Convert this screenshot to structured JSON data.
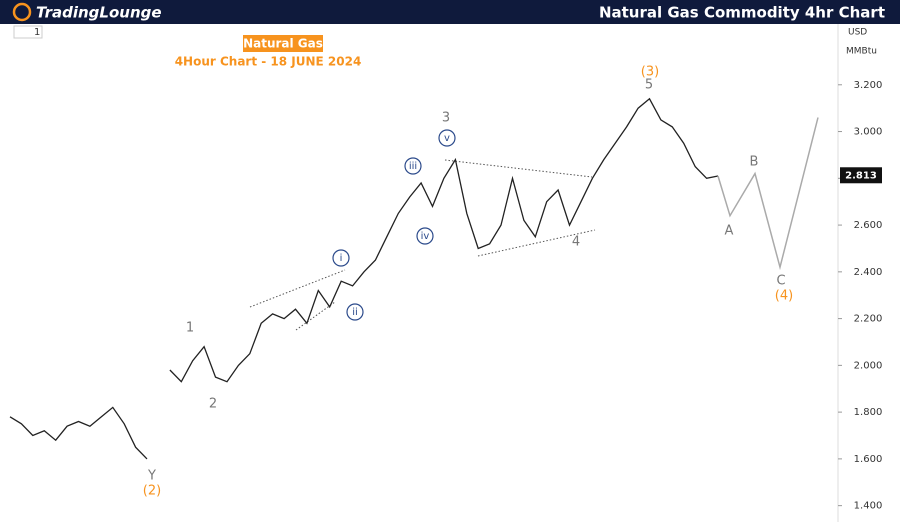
{
  "header": {
    "logo": "TradingLounge",
    "title": "Natural Gas Commodity 4hr Chart"
  },
  "toolbar": {
    "interval": "1"
  },
  "chart_data": {
    "type": "line",
    "title": "Natural Gas",
    "subtitle": "4Hour Chart - 18 JUNE 2024",
    "currency": "USD",
    "unit": "MMBtu",
    "ylim": [
      1.36,
      3.46
    ],
    "yticks": [
      {
        "value": 1.4,
        "label": "1.400"
      },
      {
        "value": 1.6,
        "label": "1.600"
      },
      {
        "value": 1.8,
        "label": "1.800"
      },
      {
        "value": 2.0,
        "label": "2.000"
      },
      {
        "value": 2.2,
        "label": "2.200"
      },
      {
        "value": 2.4,
        "label": "2.400"
      },
      {
        "value": 2.6,
        "label": "2.600"
      },
      {
        "value": 2.8,
        "label": "2.800"
      },
      {
        "value": 3.0,
        "label": "3.000"
      },
      {
        "value": 3.2,
        "label": "3.200"
      }
    ],
    "last_price": {
      "value": 2.813,
      "label": "2.813"
    },
    "series": [
      {
        "color": "#222222",
        "values": [
          1.78,
          1.75,
          1.7,
          1.72,
          1.68,
          1.74,
          1.76,
          1.74,
          1.78,
          1.82,
          1.75,
          1.65,
          1.6,
          null,
          1.98,
          1.93,
          2.02,
          2.08,
          1.95,
          1.93,
          2.0,
          2.05,
          2.18,
          2.22,
          2.2,
          2.24,
          2.18,
          2.32,
          2.25,
          2.36,
          2.34,
          2.4,
          2.45,
          2.55,
          2.65,
          2.72,
          2.78,
          2.68,
          2.8,
          2.88,
          2.65,
          2.5,
          2.52,
          2.6,
          2.8,
          2.62,
          2.55,
          2.7,
          2.75,
          2.6,
          2.7,
          2.8,
          2.88,
          2.95,
          3.02,
          3.1,
          3.14,
          3.05,
          3.02,
          2.95,
          2.85,
          2.8,
          2.81
        ]
      },
      {
        "color": "#aaaaaa",
        "values": [
          2.81,
          2.64,
          2.82,
          2.42,
          3.06
        ]
      }
    ],
    "annotations": [
      {
        "text": "(3)",
        "color": "#f7931e"
      },
      {
        "text": "5",
        "color": "#777777"
      },
      {
        "text": "3",
        "color": "#777777"
      },
      {
        "text": "v",
        "color": "#2b4a8b",
        "circle": true
      },
      {
        "text": "iii",
        "color": "#2b4a8b",
        "circle": true
      },
      {
        "text": "iv",
        "color": "#2b4a8b",
        "circle": true
      },
      {
        "text": "i",
        "color": "#2b4a8b",
        "circle": true
      },
      {
        "text": "ii",
        "color": "#2b4a8b",
        "circle": true
      },
      {
        "text": "1",
        "color": "#777777"
      },
      {
        "text": "2",
        "color": "#777777"
      },
      {
        "text": "Y",
        "color": "#777777"
      },
      {
        "text": "(2)",
        "color": "#f7931e"
      },
      {
        "text": "4",
        "color": "#777777"
      },
      {
        "text": "A",
        "color": "#777777"
      },
      {
        "text": "B",
        "color": "#777777"
      },
      {
        "text": "C",
        "color": "#777777"
      },
      {
        "text": "(4)",
        "color": "#f7931e"
      }
    ]
  }
}
